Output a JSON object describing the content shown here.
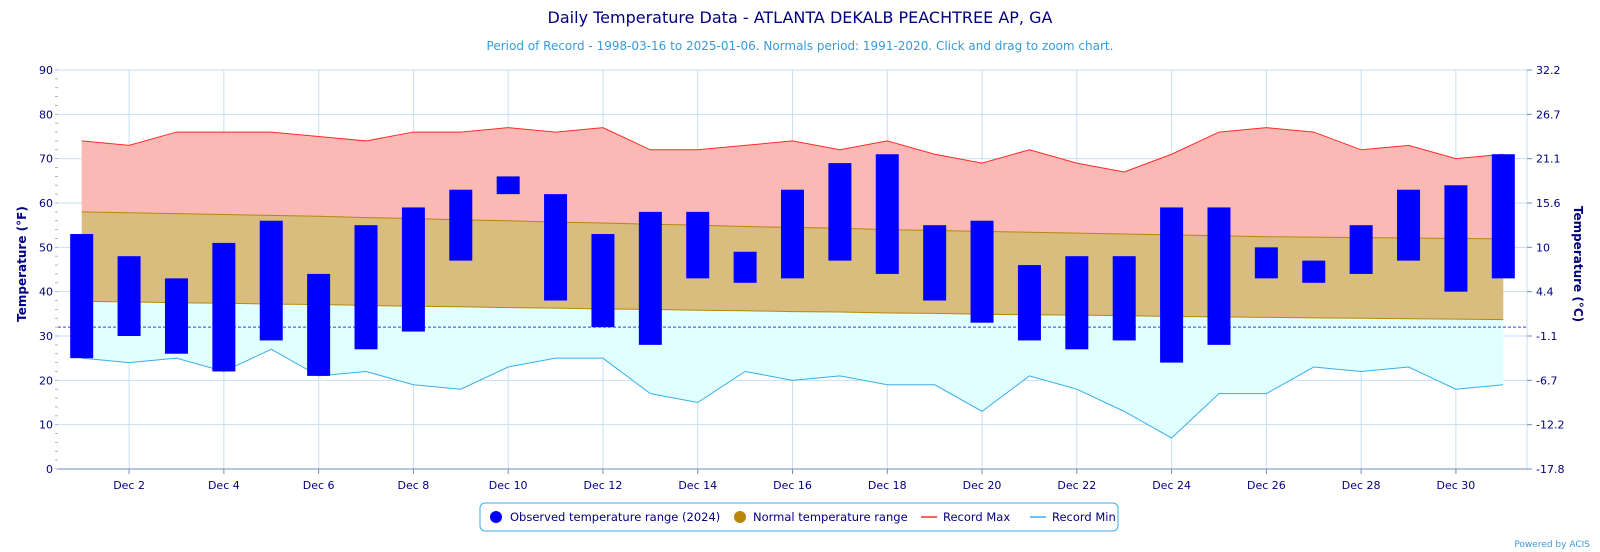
{
  "header": {
    "title": "Daily Temperature Data - ATLANTA DEKALB PEACHTREE AP, GA",
    "subtitle": "Period of Record - 1998-03-16 to 2025-01-06. Normals period: 1991-2020. Click and drag to zoom chart."
  },
  "credit": "Powered by ACIS",
  "colors": {
    "observed": "#0000ff",
    "normal_fill": "#d9bd7f",
    "normal_line": "#b8860b",
    "normal_marker": "#b8860b",
    "record_max_line": "#ff2a2a",
    "record_max_fill": "#fbb9b5",
    "record_min_line": "#3aaee8",
    "record_min_fill": "#e0ffff",
    "grid": "#c6dff5",
    "freezing_line": "#3b3bd6"
  },
  "chart_data": {
    "type": "bar",
    "ylabel": "Temperature (°F)",
    "y2label": "Temperature (°C)",
    "ylim": [
      0,
      90
    ],
    "y_ticks": [
      0,
      10,
      20,
      30,
      40,
      50,
      60,
      70,
      80,
      90
    ],
    "y2_ticks": [
      "-17.8",
      "-12.2",
      "-6.7",
      "-1.1",
      "4.4",
      "10",
      "15.6",
      "21.1",
      "26.7",
      "32.2"
    ],
    "x_ticks": [
      {
        "day": 2,
        "label": "Dec 2"
      },
      {
        "day": 4,
        "label": "Dec 4"
      },
      {
        "day": 6,
        "label": "Dec 6"
      },
      {
        "day": 8,
        "label": "Dec 8"
      },
      {
        "day": 10,
        "label": "Dec 10"
      },
      {
        "day": 12,
        "label": "Dec 12"
      },
      {
        "day": 14,
        "label": "Dec 14"
      },
      {
        "day": 16,
        "label": "Dec 16"
      },
      {
        "day": 18,
        "label": "Dec 18"
      },
      {
        "day": 20,
        "label": "Dec 20"
      },
      {
        "day": 22,
        "label": "Dec 22"
      },
      {
        "day": 24,
        "label": "Dec 24"
      },
      {
        "day": 26,
        "label": "Dec 26"
      },
      {
        "day": 28,
        "label": "Dec 28"
      },
      {
        "day": 30,
        "label": "Dec 30"
      }
    ],
    "freezing_line": 32,
    "days": [
      1,
      2,
      3,
      4,
      5,
      6,
      7,
      8,
      9,
      10,
      11,
      12,
      13,
      14,
      15,
      16,
      17,
      18,
      19,
      20,
      21,
      22,
      23,
      24,
      25,
      26,
      27,
      28,
      29,
      30,
      31
    ],
    "series": [
      {
        "name": "Observed temperature range (2024)",
        "low": [
          25,
          30,
          26,
          22,
          29,
          21,
          27,
          31,
          47,
          62,
          38,
          32,
          28,
          43,
          42,
          43,
          47,
          44,
          38,
          33,
          29,
          27,
          29,
          24,
          28,
          43,
          42,
          44,
          47,
          40,
          43
        ],
        "high": [
          53,
          48,
          43,
          51,
          56,
          44,
          55,
          59,
          63,
          66,
          62,
          53,
          58,
          58,
          49,
          63,
          69,
          71,
          55,
          56,
          46,
          48,
          48,
          59,
          59,
          50,
          47,
          55,
          63,
          64,
          71
        ]
      },
      {
        "name": "Normal temperature range",
        "low": [
          37.8,
          37.7,
          37.5,
          37.4,
          37.2,
          37.1,
          36.9,
          36.7,
          36.6,
          36.4,
          36.3,
          36.1,
          36.0,
          35.8,
          35.7,
          35.5,
          35.4,
          35.2,
          35.1,
          34.9,
          34.8,
          34.7,
          34.6,
          34.4,
          34.3,
          34.2,
          34.1,
          34.0,
          33.9,
          33.8,
          33.7
        ],
        "high": [
          58.0,
          57.8,
          57.6,
          57.4,
          57.2,
          57.0,
          56.7,
          56.5,
          56.2,
          56.0,
          55.7,
          55.5,
          55.2,
          55.0,
          54.7,
          54.5,
          54.3,
          54.0,
          53.8,
          53.6,
          53.4,
          53.2,
          53.0,
          52.8,
          52.6,
          52.4,
          52.3,
          52.2,
          52.1,
          52.0,
          51.9
        ]
      },
      {
        "name": "Record Max",
        "values": [
          74,
          73,
          76,
          76,
          76,
          75,
          74,
          76,
          76,
          77,
          76,
          77,
          72,
          72,
          73,
          74,
          72,
          74,
          71,
          69,
          72,
          69,
          67,
          71,
          76,
          77,
          76,
          72,
          73,
          70,
          71
        ]
      },
      {
        "name": "Record Min",
        "values": [
          25,
          24,
          25,
          22,
          27,
          21,
          22,
          19,
          18,
          23,
          25,
          25,
          17,
          15,
          22,
          20,
          21,
          19,
          19,
          13,
          21,
          18,
          13,
          7,
          17,
          17,
          23,
          22,
          23,
          18,
          19
        ]
      }
    ],
    "legend": {
      "placement": "bottom-center",
      "items": [
        {
          "label": "Observed temperature range (2024)",
          "marker": "circle",
          "color": "#0000ff"
        },
        {
          "label": "Normal temperature range",
          "marker": "circle",
          "color": "#b8860b"
        },
        {
          "label": "Record Max",
          "marker": "line",
          "color": "#ff2a2a"
        },
        {
          "label": "Record Min",
          "marker": "line",
          "color": "#3aaee8"
        }
      ]
    }
  }
}
